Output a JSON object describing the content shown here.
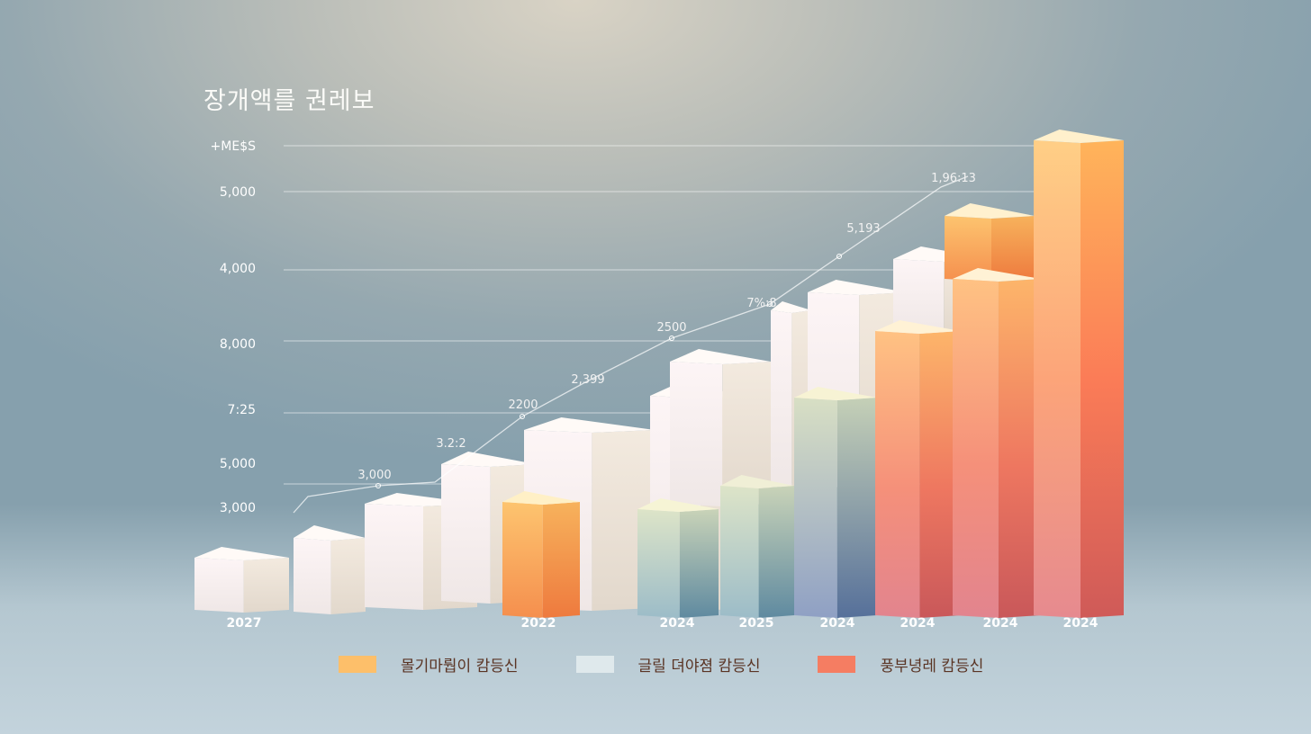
{
  "title": "장개액를 권레보",
  "chart_data": {
    "type": "bar",
    "title": "장개액를 권레보",
    "y_tick_labels": [
      "+ME$S",
      "5,000",
      "4,000",
      "8,000",
      "7:25",
      "5,000",
      "3,000"
    ],
    "x_tick_labels": [
      "2027",
      "2022",
      "2024",
      "2025",
      "2024",
      "2024",
      "2024",
      "2024"
    ],
    "series": [
      {
        "name": "몰기마뤕이 캄등신",
        "color": "#fdbf6a"
      },
      {
        "name": "글릴 뎌야졈 캄등신",
        "color": "#dfe9ec"
      },
      {
        "name": "풍부녕레 캄등신",
        "color": "#f57d62"
      }
    ],
    "trend_line": {
      "labels": [
        "3,000",
        "3.2:2",
        "2200",
        "2,399",
        "2500",
        "7%:8",
        "5,193",
        "1,96:13"
      ]
    },
    "grid": true,
    "legend_position": "bottom"
  }
}
